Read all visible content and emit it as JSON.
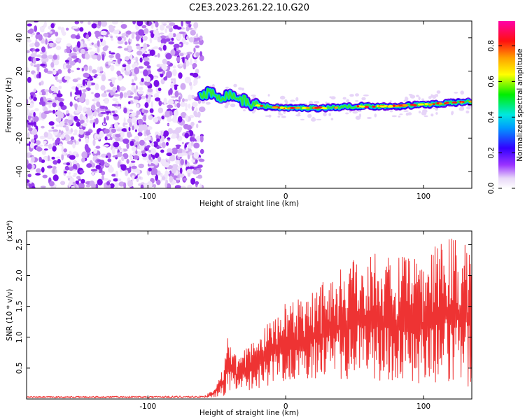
{
  "title": "C2E3.2023.261.22.10.G20",
  "chart_data": [
    {
      "type": "heatmap",
      "xlabel": "Height of straight line (km)",
      "ylabel": "Frequency (Hz)",
      "xlim": [
        -188,
        135
      ],
      "ylim": [
        -50,
        50
      ],
      "xticks": [
        -100,
        0,
        100
      ],
      "yticks": [
        -40,
        -20,
        0,
        20,
        40
      ],
      "grid": false,
      "noise_region_x": [
        -188,
        -62
      ],
      "signal_track": [
        {
          "x": -62,
          "f": 5
        },
        {
          "x": -55,
          "f": 7
        },
        {
          "x": -48,
          "f": 5
        },
        {
          "x": -40,
          "f": 6
        },
        {
          "x": -32,
          "f": 3
        },
        {
          "x": -24,
          "f": 0
        },
        {
          "x": -15,
          "f": -1
        },
        {
          "x": 0,
          "f": -2
        },
        {
          "x": 25,
          "f": -2
        },
        {
          "x": 50,
          "f": -1
        },
        {
          "x": 75,
          "f": -1
        },
        {
          "x": 100,
          "f": 0
        },
        {
          "x": 120,
          "f": 1
        },
        {
          "x": 135,
          "f": 2
        }
      ],
      "colorbar": {
        "label": "Normalized spectral amplitude",
        "range": [
          0,
          0.94
        ],
        "ticks": [
          0.0,
          0.2,
          0.4,
          0.6,
          0.8
        ],
        "tick_labels": [
          "0.0",
          "0.2",
          "0.4",
          "0.6",
          "0.8"
        ],
        "colormap": "rainbow (white, violet, blue, cyan, green, yellow, orange, red, magenta)"
      }
    },
    {
      "type": "line",
      "xlabel": "Height of straight line (km)",
      "ylabel": "SNR (10 * v/v)",
      "scale_label": "(x10⁴)",
      "xlim": [
        -188,
        135
      ],
      "ylim": [
        0,
        2.72
      ],
      "xticks": [
        -100,
        0,
        100
      ],
      "yticks": [
        0.5,
        1.0,
        1.5,
        2.0,
        2.5
      ],
      "ytick_labels": [
        "0.5",
        "1.0",
        "1.5",
        "2.0",
        "2.5"
      ],
      "color": "#ee3333",
      "envelope": [
        {
          "x": -188,
          "lo": 0.02,
          "hi": 0.04
        },
        {
          "x": -60,
          "lo": 0.02,
          "hi": 0.05
        },
        {
          "x": -52,
          "lo": 0.03,
          "hi": 0.15
        },
        {
          "x": -45,
          "lo": 0.05,
          "hi": 0.6
        },
        {
          "x": -42,
          "lo": 0.1,
          "hi": 1.0
        },
        {
          "x": -35,
          "lo": 0.1,
          "hi": 0.7
        },
        {
          "x": -25,
          "lo": 0.15,
          "hi": 0.9
        },
        {
          "x": -15,
          "lo": 0.2,
          "hi": 1.25
        },
        {
          "x": 0,
          "lo": 0.3,
          "hi": 1.55
        },
        {
          "x": 20,
          "lo": 0.3,
          "hi": 1.85
        },
        {
          "x": 40,
          "lo": 0.3,
          "hi": 2.15
        },
        {
          "x": 60,
          "lo": 0.3,
          "hi": 2.45
        },
        {
          "x": 80,
          "lo": 0.3,
          "hi": 2.3
        },
        {
          "x": 100,
          "lo": 0.25,
          "hi": 2.3
        },
        {
          "x": 120,
          "lo": 0.2,
          "hi": 2.7
        },
        {
          "x": 135,
          "lo": 0.2,
          "hi": 2.5
        }
      ]
    }
  ]
}
